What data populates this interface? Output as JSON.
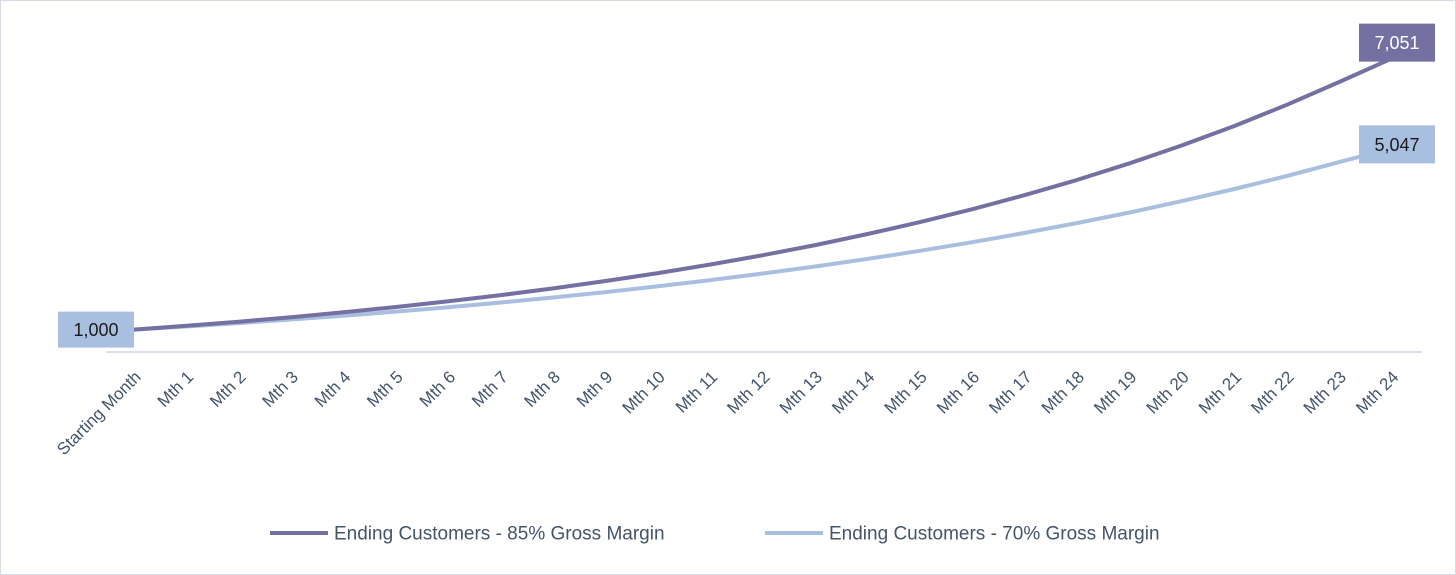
{
  "chart_data": {
    "type": "line",
    "title": "",
    "xlabel": "",
    "ylabel": "",
    "ylim": [
      500,
      7400
    ],
    "grid": false,
    "legend_position": "bottom",
    "categories": [
      "Starting Month",
      "Mth 1",
      "Mth 2",
      "Mth 3",
      "Mth 4",
      "Mth 5",
      "Mth 6",
      "Mth 7",
      "Mth 8",
      "Mth 9",
      "Mth 10",
      "Mth 11",
      "Mth 12",
      "Mth 13",
      "Mth 14",
      "Mth 15",
      "Mth 16",
      "Mth 17",
      "Mth 18",
      "Mth 19",
      "Mth 20",
      "Mth 21",
      "Mth 22",
      "Mth 23",
      "Mth 24"
    ],
    "series": [
      {
        "name": "Ending Customers - 85% Gross Margin",
        "color": "#7470a1",
        "label_text_color": "#ffffff",
        "values": [
          1000,
          1085,
          1177,
          1277,
          1386,
          1504,
          1632,
          1771,
          1921,
          2085,
          2262,
          2454,
          2662,
          2888,
          3134,
          3400,
          3689,
          4003,
          4343,
          4713,
          5113,
          5547,
          6019,
          6530,
          7051
        ],
        "end_label": "7,051"
      },
      {
        "name": "Ending Customers - 70% Gross Margin",
        "color": "#a9bfe0",
        "label_text_color": "#1a1a1a",
        "values": [
          1000,
          1070,
          1145,
          1225,
          1311,
          1403,
          1501,
          1606,
          1718,
          1838,
          1967,
          2105,
          2252,
          2410,
          2578,
          2759,
          2952,
          3159,
          3380,
          3616,
          3869,
          4140,
          4430,
          4740,
          5047
        ],
        "start_label": "1,000",
        "end_label": "5,047"
      }
    ]
  }
}
